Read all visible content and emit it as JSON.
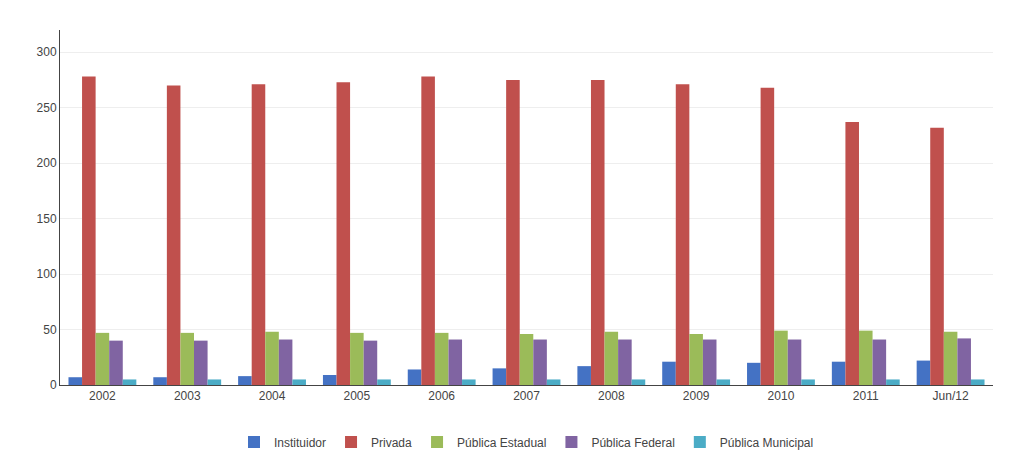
{
  "chart_data": {
    "type": "bar",
    "categories": [
      "2002",
      "2003",
      "2004",
      "2005",
      "2006",
      "2007",
      "2008",
      "2009",
      "2010",
      "2011",
      "Jun/12"
    ],
    "series": [
      {
        "name": "Instituidor",
        "color": "#4472C4",
        "values": [
          7,
          7,
          8,
          9,
          14,
          15,
          17,
          21,
          20,
          21,
          22
        ]
      },
      {
        "name": "Privada",
        "color": "#C0504D",
        "values": [
          278,
          270,
          271,
          273,
          278,
          275,
          275,
          271,
          268,
          237,
          232
        ]
      },
      {
        "name": "Pública Estadual",
        "color": "#9BBB59",
        "values": [
          47,
          47,
          48,
          47,
          47,
          46,
          48,
          46,
          49,
          49,
          48
        ]
      },
      {
        "name": "Pública Federal",
        "color": "#8064A2",
        "values": [
          40,
          40,
          41,
          40,
          41,
          41,
          41,
          41,
          41,
          41,
          42
        ]
      },
      {
        "name": "Pública Municipal",
        "color": "#4BACC6",
        "values": [
          5,
          5,
          5,
          5,
          5,
          5,
          5,
          5,
          5,
          5,
          5
        ]
      }
    ],
    "ylim": [
      0,
      320
    ],
    "yticks": [
      0,
      50,
      100,
      150,
      200,
      250,
      300
    ],
    "grid": true,
    "legend": "bottom"
  }
}
